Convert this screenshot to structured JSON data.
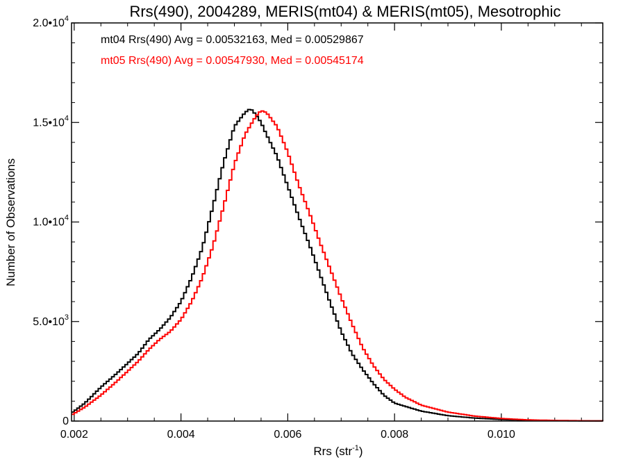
{
  "chart_data": {
    "type": "line",
    "title": "Rrs(490), 2004289, MERIS(mt04) & MERIS(mt05), Mesotrophic",
    "xlabel": "Rrs (str",
    "xlabel_sup": "-1",
    "xlabel_end": ")",
    "ylabel": "Number of Observations",
    "xlim": [
      0.00195,
      0.0119
    ],
    "ylim": [
      0,
      20000
    ],
    "x_ticks": [
      {
        "value": 0.002,
        "label": "0.002"
      },
      {
        "value": 0.004,
        "label": "0.004"
      },
      {
        "value": 0.006,
        "label": "0.006"
      },
      {
        "value": 0.008,
        "label": "0.008"
      },
      {
        "value": 0.01,
        "label": "0.010"
      }
    ],
    "y_ticks": [
      {
        "value": 0,
        "base": "0",
        "exp": ""
      },
      {
        "value": 5000,
        "base": "5.0•10",
        "exp": "3"
      },
      {
        "value": 10000,
        "base": "1.0•10",
        "exp": "4"
      },
      {
        "value": 15000,
        "base": "1.5•10",
        "exp": "4"
      },
      {
        "value": 20000,
        "base": "2.0•10",
        "exp": "4"
      }
    ],
    "grid": false,
    "legend_position": "top-left",
    "series": [
      {
        "name": "mt04",
        "legend": "mt04 Rrs(490) Avg = 0.00532163, Med = 0.00529867",
        "color": "#000000",
        "x": [
          0.00195,
          0.0022,
          0.0025,
          0.0028,
          0.003,
          0.0032,
          0.0034,
          0.0036,
          0.0038,
          0.004,
          0.0042,
          0.0044,
          0.0046,
          0.0048,
          0.005,
          0.0052,
          0.0053,
          0.0054,
          0.0055,
          0.0056,
          0.0058,
          0.006,
          0.0062,
          0.0064,
          0.0066,
          0.0068,
          0.007,
          0.0072,
          0.0074,
          0.0076,
          0.0078,
          0.008,
          0.0085,
          0.009,
          0.0095,
          0.01,
          0.0105,
          0.011,
          0.0119
        ],
        "y": [
          400,
          900,
          1700,
          2400,
          2900,
          3400,
          4100,
          4600,
          5200,
          6000,
          7200,
          8700,
          10800,
          13000,
          14800,
          15500,
          15700,
          15400,
          15000,
          14400,
          13300,
          11800,
          10300,
          8900,
          7400,
          5900,
          4500,
          3400,
          2600,
          1900,
          1300,
          900,
          500,
          270,
          150,
          80,
          40,
          20,
          5
        ]
      },
      {
        "name": "mt05",
        "legend": "mt05 Rrs(490) Avg = 0.00547930, Med = 0.00545174",
        "color": "#ff0000",
        "x": [
          0.00195,
          0.0022,
          0.0025,
          0.0028,
          0.003,
          0.0032,
          0.0034,
          0.0036,
          0.0038,
          0.004,
          0.0042,
          0.0044,
          0.0046,
          0.0048,
          0.005,
          0.0052,
          0.0054,
          0.0055,
          0.0056,
          0.0058,
          0.006,
          0.0062,
          0.0064,
          0.0066,
          0.0068,
          0.007,
          0.0072,
          0.0074,
          0.0076,
          0.0078,
          0.008,
          0.0082,
          0.0085,
          0.009,
          0.0095,
          0.01,
          0.0105,
          0.011,
          0.0119
        ],
        "y": [
          300,
          700,
          1300,
          2000,
          2500,
          3000,
          3600,
          4100,
          4500,
          5100,
          6000,
          7200,
          8800,
          10800,
          12900,
          14400,
          15300,
          15600,
          15500,
          14800,
          13500,
          11900,
          10500,
          9000,
          7600,
          6200,
          4900,
          3700,
          2800,
          2100,
          1600,
          1200,
          800,
          450,
          250,
          130,
          60,
          30,
          5
        ]
      }
    ]
  }
}
